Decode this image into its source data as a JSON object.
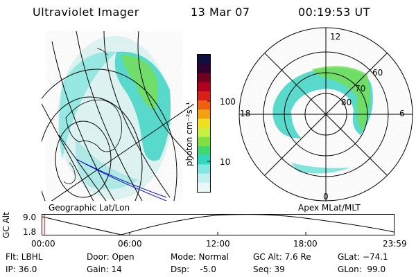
{
  "header": {
    "instrument": "Ultraviolet Imager",
    "date": "13 Mar 07",
    "time": "00:19:53 UT"
  },
  "geo_map": {
    "label": "Geographic Lat/Lon",
    "icon": "globe-map-icon"
  },
  "polar_map": {
    "label": "Apex MLat/MLT",
    "mlt_labels": [
      "12",
      "6",
      "0",
      "18"
    ],
    "mlat_labels": [
      "60",
      "70",
      "80"
    ]
  },
  "colorbar": {
    "unit_label": "photon cm⁻²s⁻¹",
    "tick_labels": [
      "100",
      "10"
    ],
    "tick_values": [
      100,
      10
    ],
    "colors": [
      "#101040",
      "#300030",
      "#700020",
      "#b00020",
      "#d82018",
      "#f06010",
      "#f0a010",
      "#f0e020",
      "#c8f040",
      "#80e040",
      "#40d870",
      "#30d8c0",
      "#80e8e0",
      "#c0f0f0",
      "#e8f8f8"
    ]
  },
  "altitude_strip": {
    "y_label": "GC Alt",
    "y_ticks": [
      "9.0",
      "1.8"
    ],
    "y_values": [
      9.0,
      1.8
    ],
    "x_ticks": [
      "00:00",
      "06:00",
      "12:00",
      "18:00",
      "23:59"
    ],
    "current_marker_color": "#cc0000"
  },
  "status": {
    "flt": "Flt: LBHL",
    "ip": "IP: 36.0",
    "door": "Door: Open",
    "gain": "Gain: 14",
    "mode": "Mode: Normal",
    "dsp": "Dsp:    -5.0",
    "gc_alt": "GC Alt: 7.6 Re",
    "seq": "Seq: 39",
    "glat": "GLat: −74.1",
    "glon": "GLon:  99.0"
  },
  "colors": {
    "aurora_low": "#40d8c8",
    "aurora_mid": "#70e050",
    "aurora_faint": "#c8f0f0",
    "coast_blue": "#1010c0"
  }
}
